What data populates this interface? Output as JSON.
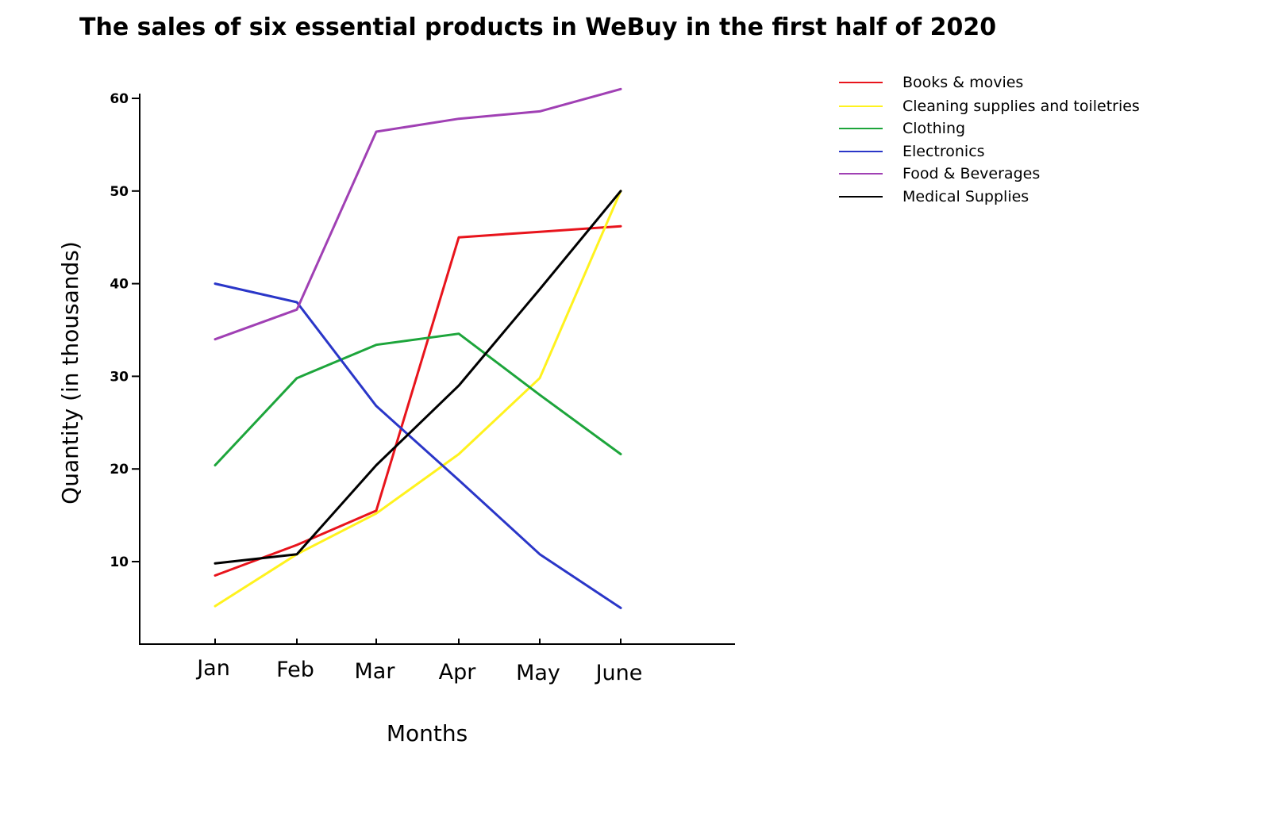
{
  "chart_data": {
    "type": "line",
    "title": "The sales of six essential products in WeBuy in the first half of 2020",
    "xlabel": "Months",
    "ylabel": "Quantity (in thousands)",
    "categories": [
      "Jan",
      "Feb",
      "Mar",
      "Apr",
      "May",
      "June"
    ],
    "yticks": [
      10,
      20,
      30,
      40,
      50,
      60
    ],
    "ytick_labels": [
      "10",
      "20",
      "30",
      "40",
      "50",
      "60"
    ],
    "ylim": [
      1,
      61
    ],
    "grid": false,
    "legend_position": "top-right",
    "series": [
      {
        "name": "Books & movies",
        "color": "#e8141c",
        "values": [
          8.5,
          11.8,
          15.5,
          45,
          45.6,
          46.2
        ]
      },
      {
        "name": "Cleaning supplies and toiletries",
        "color": "#fff21e",
        "values": [
          5.2,
          10.8,
          15.2,
          21.6,
          29.8,
          50
        ]
      },
      {
        "name": "Clothing",
        "color": "#1da53b",
        "values": [
          20.4,
          29.8,
          33.4,
          34.6,
          28,
          21.6
        ]
      },
      {
        "name": "Electronics",
        "color": "#2a36c8",
        "values": [
          40,
          38,
          26.8,
          18.8,
          10.8,
          5
        ]
      },
      {
        "name": "Food & Beverages",
        "color": "#a040b4",
        "values": [
          34,
          37.2,
          56.4,
          57.8,
          58.6,
          61
        ]
      },
      {
        "name": "Medical Supplies",
        "color": "#000000",
        "values": [
          9.8,
          10.8,
          20.4,
          29,
          39.4,
          50
        ]
      }
    ]
  }
}
